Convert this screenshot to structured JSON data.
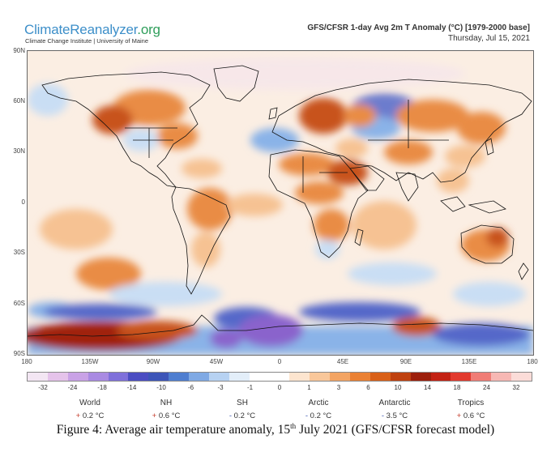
{
  "header": {
    "brand_part1": "Climate",
    "brand_part2": "Reanalyzer",
    "brand_part3": ".org",
    "brand_subtitle": "Climate Change Institute | University of Maine",
    "map_title": "GFS/CFSR 1-day Avg 2m T Anomaly (°C) [1979-2000 base]",
    "map_date": "Thursday, Jul 15, 2021"
  },
  "map": {
    "lat_labels": [
      "90N",
      "60N",
      "30N",
      "0",
      "30S",
      "60S",
      "90S"
    ],
    "lon_labels": [
      "180",
      "135W",
      "90W",
      "45W",
      "0",
      "45E",
      "90E",
      "135E",
      "180"
    ],
    "palette": {
      "ocean_base": "#fbeee3",
      "warm_light": "#f6c293",
      "warm_mid": "#e98c44",
      "warm_strong": "#c8531b",
      "hot": "#a02410",
      "cool_light": "#c9def4",
      "cool_mid": "#8ab3e8",
      "cold": "#5468c9",
      "very_cold": "#8a63cc",
      "coastline": "#111111"
    }
  },
  "colorbar": {
    "labels": [
      "-32",
      "-24",
      "-18",
      "-14",
      "-10",
      "-6",
      "-3",
      "-1",
      "0",
      "1",
      "3",
      "6",
      "10",
      "14",
      "18",
      "24",
      "32"
    ],
    "colors": [
      "#f3e6f3",
      "#e5c3ea",
      "#c9a2e6",
      "#a98ae2",
      "#7f70da",
      "#4b4dc2",
      "#3d55b8",
      "#4f7ed0",
      "#7fa9e4",
      "#b7d2f2",
      "#e3eef9",
      "#ffffff",
      "#ffffff",
      "#fde5cf",
      "#f9c79a",
      "#f3a463",
      "#ea8134",
      "#d96018",
      "#bf410f",
      "#9c1f0c",
      "#c32214",
      "#e23a2e",
      "#f07d76",
      "#f7b8b4",
      "#fbdcd8"
    ]
  },
  "stats": [
    {
      "name": "World",
      "sign": "+",
      "value": "0.2 °C"
    },
    {
      "name": "NH",
      "sign": "+",
      "value": "0.6 °C"
    },
    {
      "name": "SH",
      "sign": "-",
      "value": "0.2 °C"
    },
    {
      "name": "Arctic",
      "sign": "-",
      "value": "0.2 °C"
    },
    {
      "name": "Antarctic",
      "sign": "-",
      "value": "3.5 °C"
    },
    {
      "name": "Tropics",
      "sign": "+",
      "value": "0.6 °C"
    }
  ],
  "caption": {
    "prefix": "Figure 4: Average air temperature anomaly, 15",
    "superscript": "th",
    "suffix": " July 2021 (GFS/CFSR forecast model)"
  }
}
